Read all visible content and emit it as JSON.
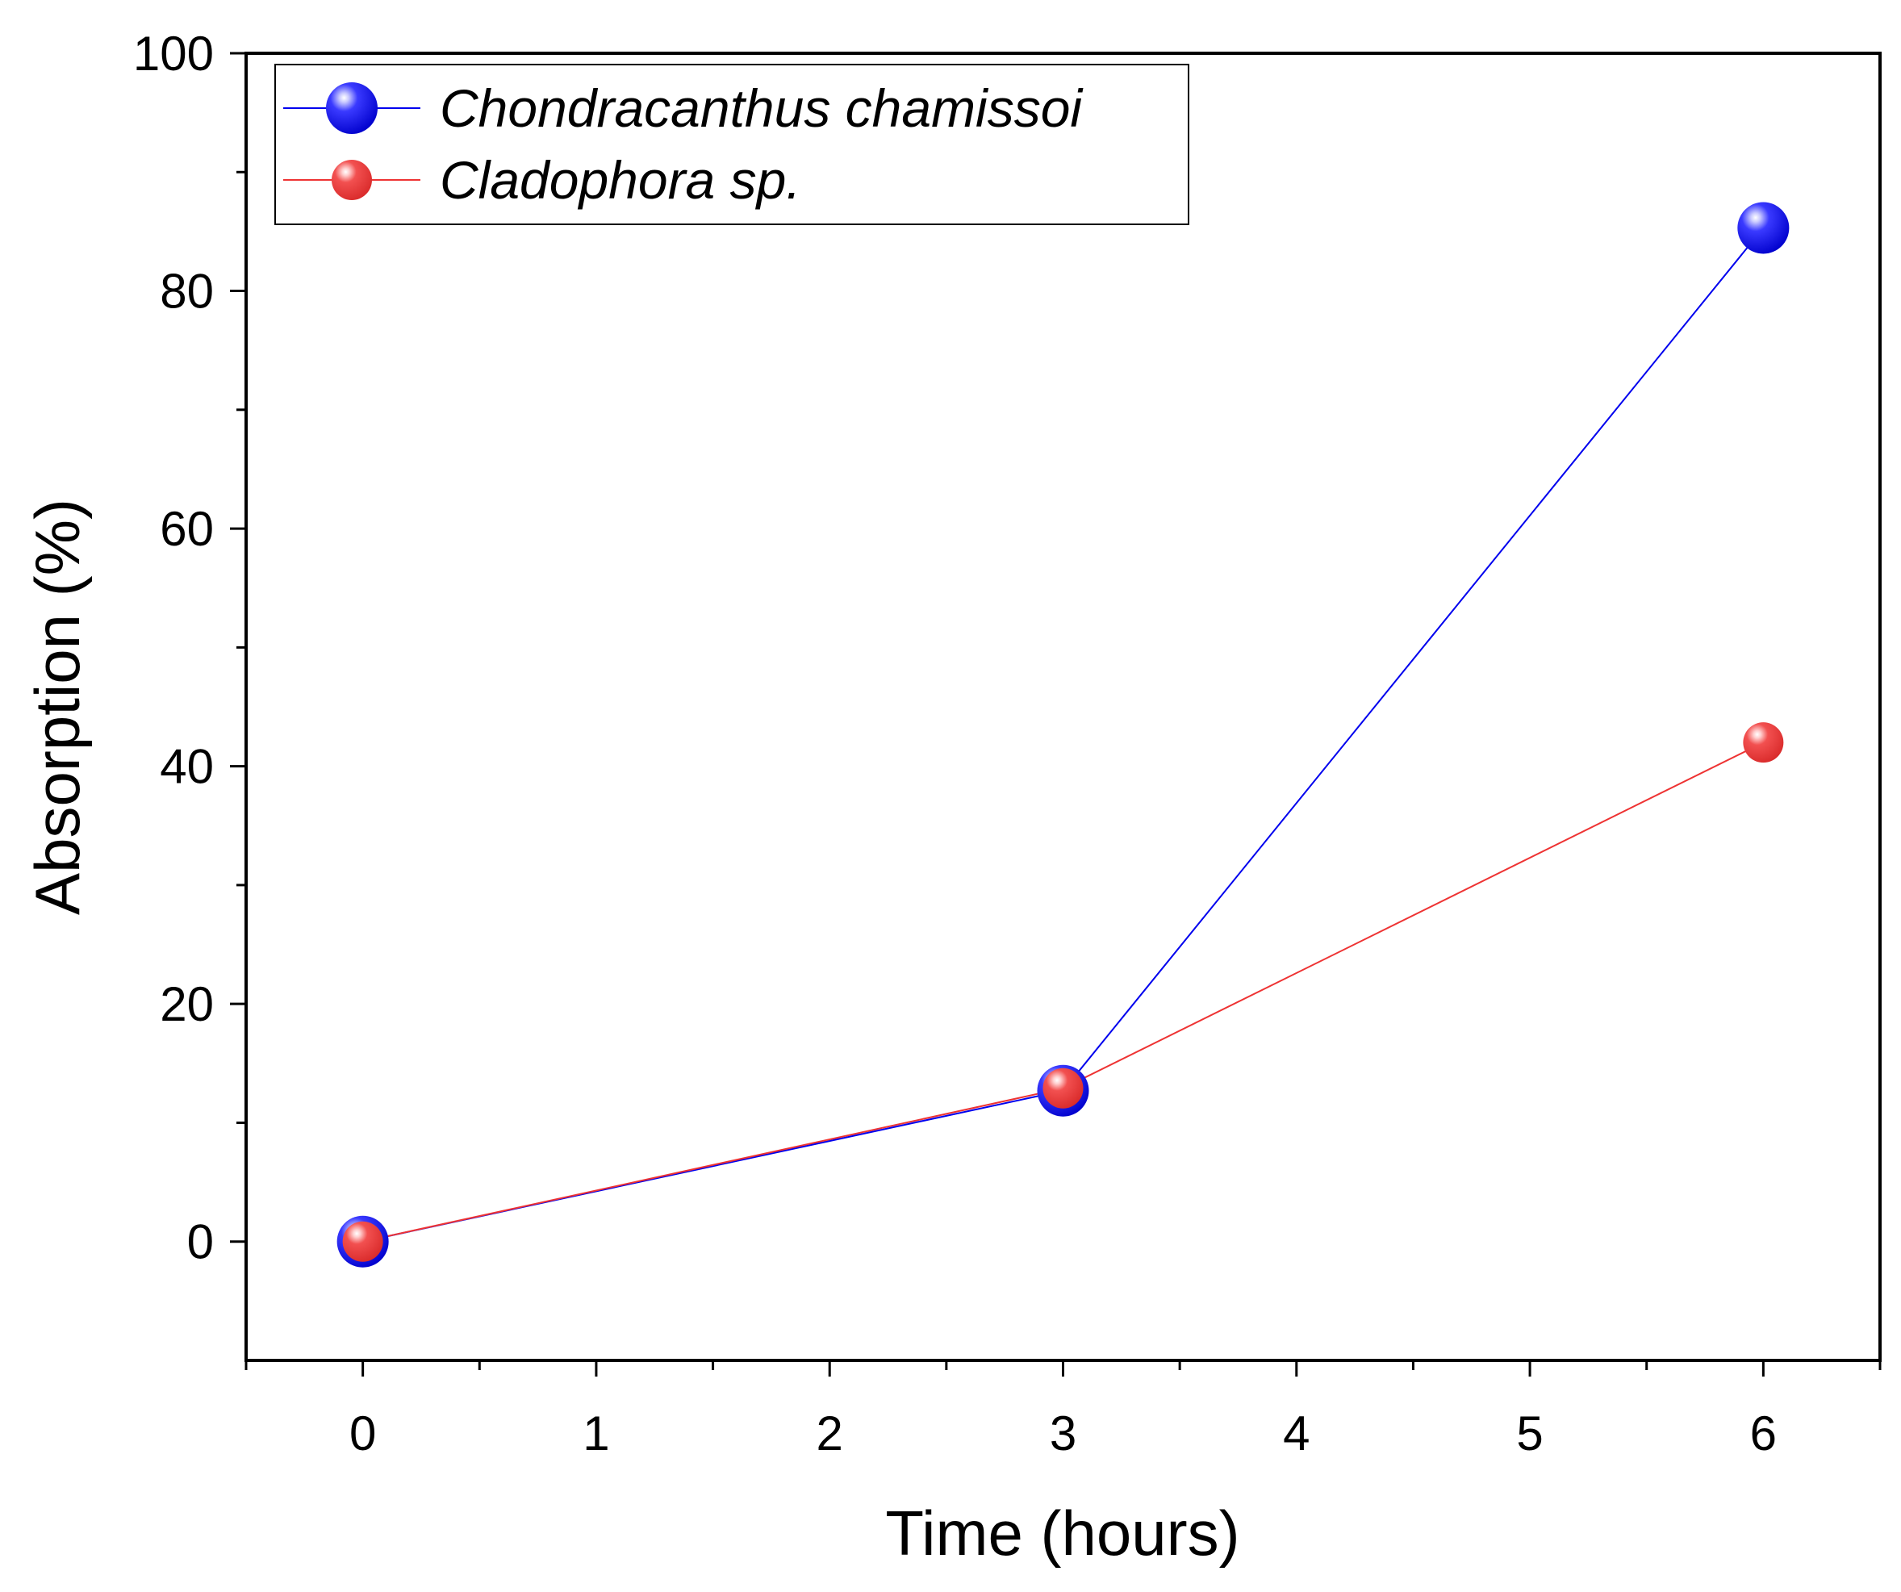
{
  "chart_data": {
    "type": "line",
    "title": "",
    "xlabel": "Time (hours)",
    "ylabel": "Absorption (%)",
    "xlim": [
      -0.5,
      6.5
    ],
    "ylim": [
      -10,
      100
    ],
    "x_ticks": [
      0,
      1,
      2,
      3,
      4,
      5,
      6
    ],
    "x_tick_labels": [
      "0",
      "1",
      "2",
      "3",
      "4",
      "5",
      "6"
    ],
    "y_ticks": [
      0,
      20,
      40,
      60,
      80,
      100
    ],
    "y_tick_labels": [
      "0",
      "20",
      "40",
      "60",
      "80",
      "100"
    ],
    "grid": false,
    "legend_position": "top-left",
    "series": [
      {
        "name": "Chondracanthus chamissoi",
        "color": "#0000ee",
        "marker": "sphere",
        "x": [
          0,
          3,
          6
        ],
        "values": [
          0,
          12.7,
          85.3
        ]
      },
      {
        "name": "Cladophora sp.",
        "color": "#ee3333",
        "marker": "sphere",
        "x": [
          0,
          3,
          6
        ],
        "values": [
          0,
          12.9,
          42.0
        ]
      }
    ]
  }
}
